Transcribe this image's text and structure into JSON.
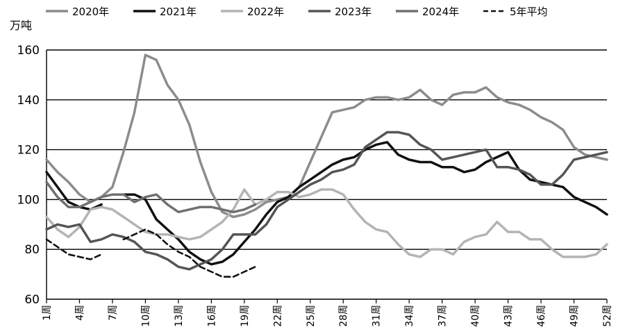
{
  "chart_data": {
    "type": "line",
    "ylabel": "万吨",
    "ylim": [
      60,
      160
    ],
    "yticks": [
      60,
      80,
      100,
      120,
      140,
      160
    ],
    "x_ticks": [
      1,
      4,
      7,
      10,
      13,
      16,
      19,
      22,
      25,
      28,
      31,
      34,
      37,
      40,
      43,
      46,
      49,
      52
    ],
    "x_tick_labels": [
      "1周",
      "4周",
      "7周",
      "10周",
      "13周",
      "16周",
      "19周",
      "22周",
      "25周",
      "28周",
      "31周",
      "34周",
      "37周",
      "40周",
      "43周",
      "46周",
      "49周",
      "52周"
    ],
    "x_range": [
      1,
      52
    ],
    "grid": "horizontal",
    "legend_position": "top",
    "series": [
      {
        "name": "2020年",
        "color": "#8c8c8c",
        "dash": "solid",
        "points": [
          [
            1,
            116
          ],
          [
            2,
            111
          ],
          [
            3,
            107
          ],
          [
            4,
            102
          ],
          [
            5,
            99
          ],
          [
            6,
            101
          ],
          [
            7,
            105
          ],
          [
            8,
            119
          ],
          [
            9,
            135
          ],
          [
            10,
            158
          ],
          [
            11,
            156
          ],
          [
            12,
            146
          ],
          [
            13,
            140
          ],
          [
            14,
            130
          ],
          [
            15,
            115
          ],
          [
            16,
            103
          ],
          [
            17,
            95
          ],
          [
            18,
            93
          ],
          [
            19,
            94
          ],
          [
            20,
            96
          ],
          [
            21,
            99
          ],
          [
            22,
            100
          ],
          [
            23,
            101
          ],
          [
            24,
            105
          ],
          [
            25,
            115
          ],
          [
            26,
            125
          ],
          [
            27,
            135
          ],
          [
            28,
            136
          ],
          [
            29,
            137
          ],
          [
            30,
            140
          ],
          [
            31,
            141
          ],
          [
            32,
            141
          ],
          [
            33,
            140
          ],
          [
            34,
            141
          ],
          [
            35,
            144
          ],
          [
            36,
            140
          ],
          [
            37,
            138
          ],
          [
            38,
            142
          ],
          [
            39,
            143
          ],
          [
            40,
            143
          ],
          [
            41,
            145
          ],
          [
            42,
            141
          ],
          [
            43,
            139
          ],
          [
            44,
            138
          ],
          [
            45,
            136
          ],
          [
            46,
            133
          ],
          [
            47,
            131
          ],
          [
            48,
            128
          ],
          [
            49,
            121
          ],
          [
            50,
            118
          ],
          [
            51,
            117
          ],
          [
            52,
            116
          ]
        ]
      },
      {
        "name": "2021年",
        "color": "#111111",
        "dash": "solid",
        "points": [
          [
            1,
            111
          ],
          [
            2,
            105
          ],
          [
            3,
            99
          ],
          [
            4,
            97
          ],
          [
            5,
            96
          ],
          [
            6,
            98
          ],
          [
            8,
            102
          ],
          [
            9,
            102
          ],
          [
            10,
            100
          ],
          [
            11,
            92
          ],
          [
            12,
            88
          ],
          [
            13,
            84
          ],
          [
            14,
            79
          ],
          [
            15,
            76
          ],
          [
            16,
            74
          ],
          [
            17,
            75
          ],
          [
            18,
            78
          ],
          [
            19,
            83
          ],
          [
            20,
            88
          ],
          [
            21,
            94
          ],
          [
            22,
            99
          ],
          [
            23,
            101
          ],
          [
            24,
            105
          ],
          [
            25,
            108
          ],
          [
            26,
            111
          ],
          [
            27,
            114
          ],
          [
            28,
            116
          ],
          [
            29,
            117
          ],
          [
            30,
            120
          ],
          [
            31,
            122
          ],
          [
            32,
            123
          ],
          [
            33,
            118
          ],
          [
            34,
            116
          ],
          [
            35,
            115
          ],
          [
            36,
            115
          ],
          [
            37,
            113
          ],
          [
            38,
            113
          ],
          [
            39,
            111
          ],
          [
            40,
            112
          ],
          [
            41,
            115
          ],
          [
            42,
            117
          ],
          [
            43,
            119
          ],
          [
            44,
            112
          ],
          [
            45,
            108
          ],
          [
            46,
            107
          ],
          [
            47,
            106
          ],
          [
            48,
            105
          ],
          [
            49,
            101
          ],
          [
            50,
            99
          ],
          [
            51,
            97
          ],
          [
            52,
            94
          ]
        ]
      },
      {
        "name": "2022年",
        "color": "#b4b4b4",
        "dash": "solid",
        "points": [
          [
            1,
            93
          ],
          [
            2,
            88
          ],
          [
            3,
            85
          ],
          [
            4,
            89
          ],
          [
            5,
            96
          ],
          [
            6,
            97
          ],
          [
            7,
            96
          ],
          [
            8,
            93
          ],
          [
            9,
            90
          ],
          [
            10,
            87
          ],
          [
            11,
            86
          ],
          [
            12,
            86
          ],
          [
            13,
            85
          ],
          [
            14,
            84
          ],
          [
            15,
            85
          ],
          [
            16,
            88
          ],
          [
            17,
            91
          ],
          [
            18,
            96
          ],
          [
            19,
            104
          ],
          [
            20,
            98
          ],
          [
            21,
            100
          ],
          [
            22,
            103
          ],
          [
            23,
            103
          ],
          [
            24,
            101
          ],
          [
            25,
            102
          ],
          [
            26,
            104
          ],
          [
            27,
            104
          ],
          [
            28,
            102
          ],
          [
            29,
            96
          ],
          [
            30,
            91
          ],
          [
            31,
            88
          ],
          [
            32,
            87
          ],
          [
            33,
            82
          ],
          [
            34,
            78
          ],
          [
            35,
            77
          ],
          [
            36,
            80
          ],
          [
            37,
            80
          ],
          [
            38,
            78
          ],
          [
            39,
            83
          ],
          [
            40,
            85
          ],
          [
            41,
            86
          ],
          [
            42,
            91
          ],
          [
            43,
            87
          ],
          [
            44,
            87
          ],
          [
            45,
            84
          ],
          [
            46,
            84
          ],
          [
            47,
            80
          ],
          [
            48,
            77
          ],
          [
            49,
            77
          ],
          [
            50,
            77
          ],
          [
            51,
            78
          ],
          [
            52,
            82
          ]
        ]
      },
      {
        "name": "2023年",
        "color": "#555555",
        "dash": "solid",
        "points": [
          [
            1,
            88
          ],
          [
            2,
            90
          ],
          [
            3,
            89
          ],
          [
            4,
            90
          ],
          [
            5,
            83
          ],
          [
            6,
            84
          ],
          [
            7,
            86
          ],
          [
            8,
            85
          ],
          [
            9,
            83
          ],
          [
            10,
            79
          ],
          [
            11,
            78
          ],
          [
            12,
            76
          ],
          [
            13,
            73
          ],
          [
            14,
            72
          ],
          [
            15,
            74
          ],
          [
            16,
            76
          ],
          [
            17,
            80
          ],
          [
            18,
            86
          ],
          [
            19,
            86
          ],
          [
            20,
            86
          ],
          [
            21,
            90
          ],
          [
            22,
            97
          ],
          [
            23,
            100
          ],
          [
            24,
            103
          ],
          [
            25,
            106
          ],
          [
            26,
            108
          ],
          [
            27,
            111
          ],
          [
            28,
            112
          ],
          [
            29,
            114
          ],
          [
            30,
            121
          ],
          [
            31,
            124
          ],
          [
            32,
            127
          ],
          [
            33,
            127
          ],
          [
            34,
            126
          ],
          [
            35,
            122
          ],
          [
            36,
            120
          ],
          [
            37,
            116
          ],
          [
            38,
            117
          ],
          [
            39,
            118
          ],
          [
            40,
            119
          ],
          [
            41,
            120
          ],
          [
            42,
            113
          ],
          [
            43,
            113
          ],
          [
            44,
            112
          ],
          [
            45,
            110
          ],
          [
            46,
            106
          ],
          [
            47,
            106
          ],
          [
            48,
            110
          ],
          [
            49,
            116
          ],
          [
            50,
            117
          ],
          [
            51,
            118
          ],
          [
            52,
            119
          ]
        ]
      },
      {
        "name": "2024年",
        "color": "#707070",
        "dash": "solid",
        "points": [
          [
            1,
            107
          ],
          [
            2,
            101
          ],
          [
            3,
            97
          ],
          [
            4,
            97
          ],
          [
            5,
            99
          ],
          [
            6,
            101
          ],
          [
            7,
            102
          ],
          [
            8,
            102
          ],
          [
            9,
            99
          ],
          [
            10,
            101
          ],
          [
            11,
            102
          ],
          [
            12,
            98
          ],
          [
            13,
            95
          ],
          [
            14,
            96
          ],
          [
            15,
            97
          ],
          [
            16,
            97
          ],
          [
            17,
            96
          ],
          [
            18,
            95
          ],
          [
            19,
            96
          ],
          [
            20,
            98
          ]
        ]
      },
      {
        "name": "5年平均",
        "color": "#111111",
        "dash": "dashed",
        "points": [
          [
            1,
            84
          ],
          [
            2,
            81
          ],
          [
            3,
            78
          ],
          [
            4,
            77
          ],
          [
            5,
            76
          ],
          [
            6,
            78
          ],
          [
            8,
            84
          ],
          [
            9,
            86
          ],
          [
            10,
            88
          ],
          [
            11,
            86
          ],
          [
            12,
            82
          ],
          [
            13,
            79
          ],
          [
            14,
            77
          ],
          [
            15,
            73
          ],
          [
            16,
            71
          ],
          [
            17,
            69
          ],
          [
            18,
            69
          ],
          [
            19,
            71
          ],
          [
            20,
            73
          ]
        ]
      }
    ]
  }
}
